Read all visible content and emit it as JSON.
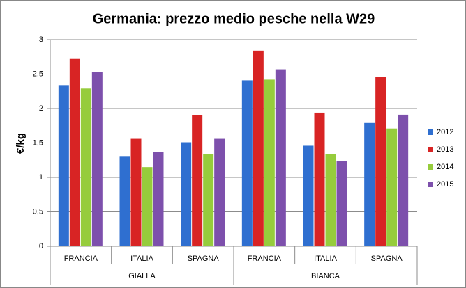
{
  "chart_data": {
    "type": "bar",
    "title": "Germania: prezzo medio pesche nella W29",
    "y_label": "€/kg",
    "groups": [
      {
        "name": "GIALLA",
        "categories": [
          "FRANCIA",
          "ITALIA",
          "SPAGNA"
        ]
      },
      {
        "name": "BIANCA",
        "categories": [
          "FRANCIA",
          "ITALIA",
          "SPAGNA"
        ]
      }
    ],
    "series": [
      {
        "name": "2012",
        "color": "#2f6fd0",
        "values": [
          2.34,
          1.31,
          1.51,
          2.41,
          1.46,
          1.79
        ]
      },
      {
        "name": "2013",
        "color": "#d82424",
        "values": [
          2.72,
          1.56,
          1.9,
          2.84,
          1.94,
          2.46
        ]
      },
      {
        "name": "2014",
        "color": "#96cc3c",
        "values": [
          2.29,
          1.15,
          1.34,
          2.42,
          1.34,
          1.71
        ]
      },
      {
        "name": "2015",
        "color": "#7d50ac",
        "values": [
          2.53,
          1.37,
          1.56,
          2.57,
          1.24,
          1.91
        ]
      }
    ],
    "ylim": [
      0,
      3
    ],
    "yticks": [
      0,
      {
        "value": 0.5,
        "label": "0,5"
      },
      1,
      {
        "value": 1.5,
        "label": "1,5"
      },
      2,
      {
        "value": 2.5,
        "label": "2,5"
      },
      3
    ],
    "grid": true,
    "legend": "right"
  }
}
